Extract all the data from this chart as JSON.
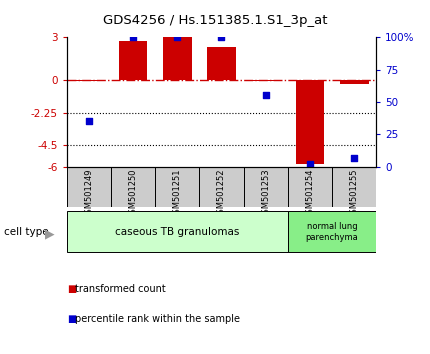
{
  "title": "GDS4256 / Hs.151385.1.S1_3p_at",
  "samples": [
    "GSM501249",
    "GSM501250",
    "GSM501251",
    "GSM501252",
    "GSM501253",
    "GSM501254",
    "GSM501255"
  ],
  "red_bars": [
    -0.08,
    2.72,
    3.0,
    2.32,
    -0.08,
    -5.82,
    -0.28
  ],
  "blue_dots": [
    35,
    100,
    100,
    100,
    55,
    2,
    7
  ],
  "left_ylim": [
    -6,
    3
  ],
  "right_ylim": [
    0,
    100
  ],
  "left_yticks": [
    3,
    0,
    -2.25,
    -4.5,
    -6
  ],
  "left_yticklabels": [
    "3",
    "0",
    "-2.25",
    "-4.5",
    "-6"
  ],
  "right_yticks": [
    100,
    75,
    50,
    25,
    0
  ],
  "right_yticklabels": [
    "100%",
    "75",
    "50",
    "25",
    "0"
  ],
  "dotted_lines": [
    -2.25,
    -4.5
  ],
  "bar_color": "#cc0000",
  "dot_color": "#0000cc",
  "dashed_line_color": "#cc0000",
  "dotted_line_color": "#000000",
  "cell_type_label": "cell type",
  "group1_label": "caseous TB granulomas",
  "group2_label": "normal lung\nparenchyma",
  "group1_color": "#ccffcc",
  "group2_color": "#88ee88",
  "legend_red_label": "transformed count",
  "legend_blue_label": "percentile rank within the sample",
  "bg_color": "#ffffff",
  "tick_label_color_left": "#cc0000",
  "tick_label_color_right": "#0000cc",
  "sample_box_color": "#cccccc"
}
